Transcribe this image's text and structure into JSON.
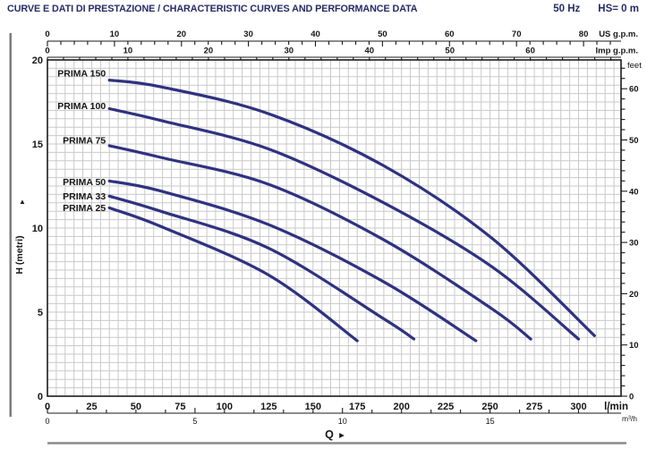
{
  "header": {
    "title": "CURVE E DATI DI PRESTAZIONE / CHARACTERISTIC CURVES AND PERFORMANCE DATA",
    "frequency": "50 Hz",
    "suction_head": "HS= 0 m"
  },
  "chart_data": {
    "type": "line",
    "title": "Pump characteristic curves (head vs flow)",
    "xlabel": "Q",
    "ylabel": "H (metri)",
    "xlim_lmin": [
      0,
      324
    ],
    "ylim_m": [
      0,
      20
    ],
    "grid": {
      "on": true,
      "x_step_lmin": 5,
      "y_step_m": 0.5
    },
    "x_axes": {
      "us_gpm": {
        "label": "US g.p.m.",
        "lmin_per_unit": 3.785,
        "major": 10,
        "minor": 2,
        "max_labeled": 80
      },
      "imp_gpm": {
        "label": "Imp g.p.m.",
        "lmin_per_unit": 4.546,
        "major": 10,
        "minor": 2,
        "max_labeled": 60
      },
      "lmin": {
        "label": "l/min",
        "lmin_per_unit": 1,
        "major": 25,
        "minor": 25,
        "max_labeled": 300
      },
      "m3h": {
        "label": "m³/h",
        "lmin_per_unit": 16.6667,
        "major": 5,
        "minor": 1,
        "max_labeled": 15
      }
    },
    "y_axes": {
      "metri": {
        "label": "H (metri)",
        "major": 5,
        "minor": 0.5,
        "tick_labels": [
          0,
          5,
          10,
          15,
          20
        ]
      },
      "feet": {
        "label": "feet",
        "m_per_unit": 0.3048,
        "major": 10,
        "minor": 2,
        "max_labeled": 60
      }
    },
    "series": [
      {
        "name": "PRIMA 150",
        "label_h": 19.2,
        "points_q_h": [
          [
            35,
            18.8
          ],
          [
            64,
            18.4
          ],
          [
            125,
            16.8
          ],
          [
            190,
            13.7
          ],
          [
            251,
            9.4
          ],
          [
            309,
            3.6
          ]
        ]
      },
      {
        "name": "PRIMA 100",
        "label_h": 17.25,
        "points_q_h": [
          [
            35,
            17.1
          ],
          [
            64,
            16.4
          ],
          [
            125,
            14.7
          ],
          [
            190,
            11.5
          ],
          [
            251,
            7.7
          ],
          [
            300,
            3.4
          ]
        ]
      },
      {
        "name": "PRIMA 75",
        "label_h": 15.2,
        "points_q_h": [
          [
            35,
            14.9
          ],
          [
            64,
            14.2
          ],
          [
            125,
            12.6
          ],
          [
            190,
            9.3
          ],
          [
            251,
            5.2
          ],
          [
            273,
            3.4
          ]
        ]
      },
      {
        "name": "PRIMA 50",
        "label_h": 12.75,
        "points_q_h": [
          [
            35,
            12.8
          ],
          [
            64,
            12.2
          ],
          [
            125,
            10.2
          ],
          [
            190,
            6.8
          ],
          [
            242,
            3.3
          ]
        ]
      },
      {
        "name": "PRIMA 33",
        "label_h": 11.9,
        "points_q_h": [
          [
            35,
            11.9
          ],
          [
            64,
            11.0
          ],
          [
            125,
            8.8
          ],
          [
            190,
            4.6
          ],
          [
            207,
            3.4
          ]
        ]
      },
      {
        "name": "PRIMA 25",
        "label_h": 11.2,
        "points_q_h": [
          [
            35,
            11.2
          ],
          [
            64,
            10.1
          ],
          [
            125,
            7.2
          ],
          [
            175,
            3.3
          ]
        ]
      }
    ],
    "colors": {
      "curve": "#2f3280",
      "grid": "#c9c9c9",
      "axis": "#1a1a1a",
      "header_text": "#262b66",
      "rule": "#8a8a8a"
    }
  }
}
